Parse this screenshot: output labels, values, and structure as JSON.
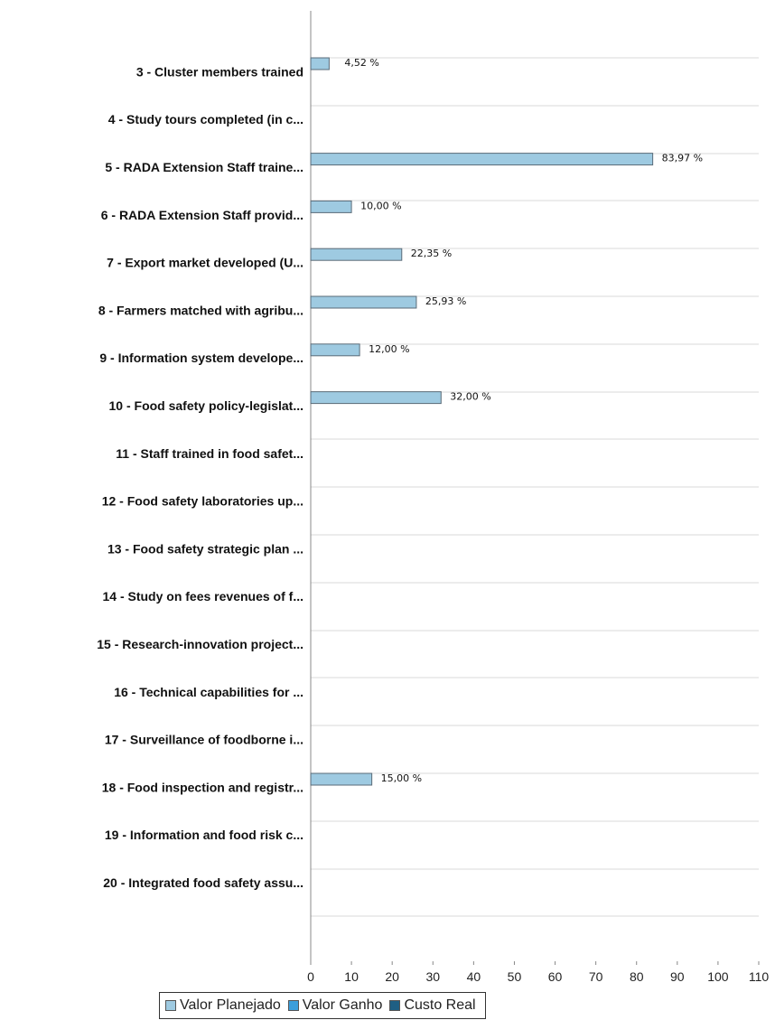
{
  "legend": [
    {
      "name": "Valor Planejado",
      "color": "#9ecae1"
    },
    {
      "name": "Valor Ganho",
      "color": "#3b9edb"
    },
    {
      "name": "Custo Real",
      "color": "#1f5f84"
    }
  ],
  "chart_data": {
    "type": "bar",
    "orientation": "horizontal",
    "categories": [
      "3 - Cluster members trained",
      "4 - Study tours completed (in c...",
      "5 - RADA Extension Staff traine...",
      "6 - RADA Extension Staff provid...",
      "7 - Export market developed  (U...",
      "8 - Farmers matched with agribu...",
      "9 - Information system develope...",
      "10 - Food safety policy-legislat...",
      "11 - Staff trained in food safet...",
      "12 - Food safety laboratories up...",
      "13 - Food safety strategic plan ...",
      "14 - Study on fees revenues of f...",
      "15 - Research-innovation project...",
      "16 - Technical capabilities for ...",
      "17 - Surveillance of foodborne i...",
      "18 - Food inspection and registr...",
      "19 - Information and food risk c...",
      "20 - Integrated food safety assu..."
    ],
    "series": [
      {
        "name": "Valor Planejado",
        "color": "#9ecae1",
        "values": [
          4.52,
          null,
          83.97,
          10.0,
          22.35,
          25.93,
          12.0,
          32.0,
          null,
          null,
          null,
          null,
          null,
          null,
          null,
          15.0,
          null,
          null
        ],
        "labels": [
          "4,52 %",
          "",
          "83,97 %",
          "10,00 %",
          "22,35 %",
          "25,93 %",
          "12,00 %",
          "32,00 %",
          "",
          "",
          "",
          "",
          "",
          "",
          "",
          "15,00 %",
          "",
          ""
        ]
      },
      {
        "name": "Valor Ganho",
        "color": "#3b9edb",
        "values": [
          null,
          null,
          null,
          null,
          null,
          null,
          null,
          null,
          null,
          null,
          null,
          null,
          null,
          null,
          null,
          null,
          null,
          null
        ]
      },
      {
        "name": "Custo Real",
        "color": "#1f5f84",
        "values": [
          null,
          null,
          null,
          null,
          null,
          null,
          null,
          null,
          null,
          null,
          null,
          null,
          null,
          null,
          null,
          null,
          null,
          null
        ]
      }
    ],
    "xlim": [
      0,
      110
    ],
    "xticks": [
      0,
      10,
      20,
      30,
      40,
      50,
      60,
      70,
      80,
      90,
      100,
      110
    ],
    "grid": true,
    "legend_position": "bottom"
  }
}
